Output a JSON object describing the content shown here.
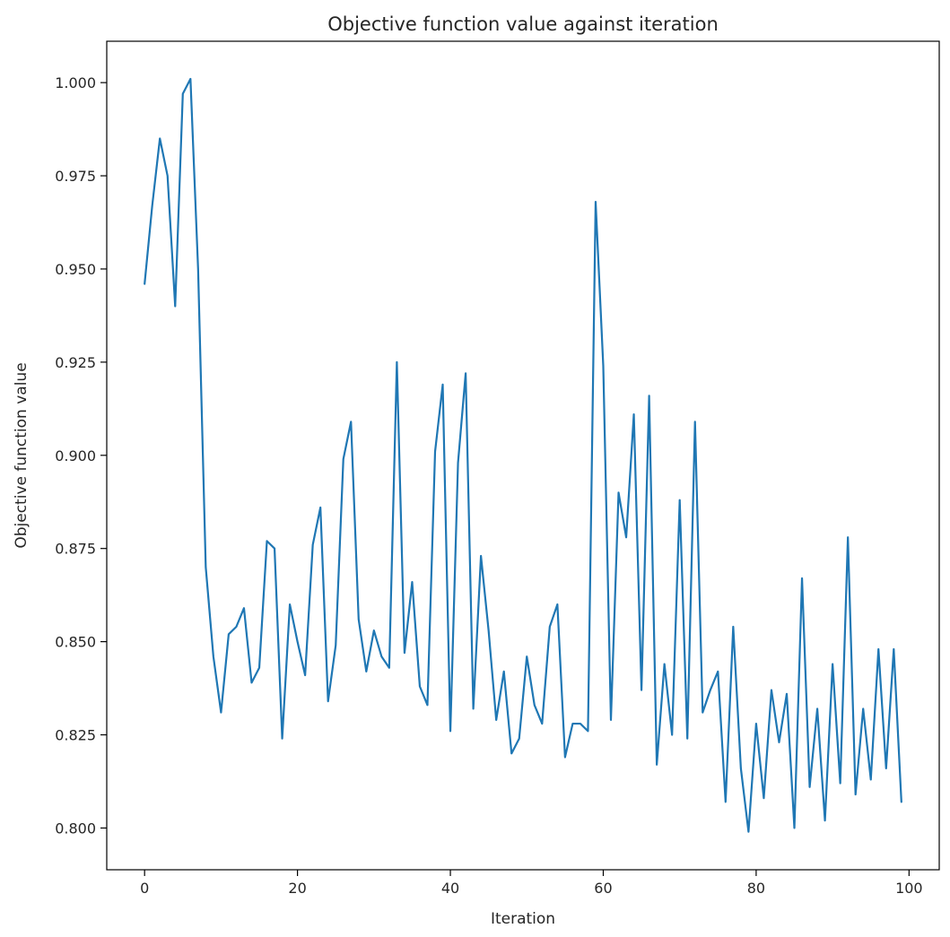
{
  "chart_data": {
    "type": "line",
    "title": "Objective function value against iteration",
    "xlabel": "Iteration",
    "ylabel": "Objective function value",
    "xlim": [
      -4.95,
      103.95
    ],
    "ylim": [
      0.7888,
      1.0111
    ],
    "xticks": [
      0,
      20,
      40,
      60,
      80,
      100
    ],
    "yticks": [
      0.8,
      0.825,
      0.85,
      0.875,
      0.9,
      0.925,
      0.95,
      0.975,
      1.0
    ],
    "ytick_labels": [
      "0.800",
      "0.825",
      "0.850",
      "0.875",
      "0.900",
      "0.925",
      "0.950",
      "0.975",
      "1.000"
    ],
    "grid": false,
    "line_color": "#1f77b4",
    "series": [
      {
        "x": [
          0,
          1,
          2,
          3,
          4,
          5,
          6,
          7,
          8,
          9,
          10,
          11,
          12,
          13,
          14,
          15,
          16,
          17,
          18,
          19,
          20,
          21,
          22,
          23,
          24,
          25,
          26,
          27,
          28,
          29,
          30,
          31,
          32,
          33,
          34,
          35,
          36,
          37,
          38,
          39,
          40,
          41,
          42,
          43,
          44,
          45,
          46,
          47,
          48,
          49,
          50,
          51,
          52,
          53,
          54,
          55,
          56,
          57,
          58,
          59,
          60,
          61,
          62,
          63,
          64,
          65,
          66,
          67,
          68,
          69,
          70,
          71,
          72,
          73,
          74,
          75,
          76,
          77,
          78,
          79,
          80,
          81,
          82,
          83,
          84,
          85,
          86,
          87,
          88,
          89,
          90,
          91,
          92,
          93,
          94,
          95,
          96,
          97,
          98,
          99
        ],
        "values": [
          0.946,
          0.967,
          0.985,
          0.975,
          0.94,
          0.997,
          1.001,
          0.95,
          0.87,
          0.846,
          0.831,
          0.852,
          0.854,
          0.859,
          0.839,
          0.843,
          0.877,
          0.875,
          0.824,
          0.86,
          0.85,
          0.841,
          0.876,
          0.886,
          0.834,
          0.849,
          0.899,
          0.909,
          0.856,
          0.842,
          0.853,
          0.846,
          0.843,
          0.925,
          0.847,
          0.866,
          0.838,
          0.833,
          0.901,
          0.919,
          0.826,
          0.898,
          0.922,
          0.832,
          0.873,
          0.853,
          0.829,
          0.842,
          0.82,
          0.824,
          0.846,
          0.833,
          0.828,
          0.854,
          0.86,
          0.819,
          0.828,
          0.828,
          0.826,
          0.968,
          0.924,
          0.829,
          0.89,
          0.878,
          0.911,
          0.837,
          0.916,
          0.817,
          0.844,
          0.825,
          0.888,
          0.824,
          0.909,
          0.831,
          0.837,
          0.842,
          0.807,
          0.854,
          0.816,
          0.799,
          0.828,
          0.808,
          0.837,
          0.823,
          0.836,
          0.8,
          0.867,
          0.811,
          0.832,
          0.802,
          0.844,
          0.812,
          0.878,
          0.809,
          0.832,
          0.813,
          0.848,
          0.816,
          0.848,
          0.807
        ]
      }
    ]
  }
}
